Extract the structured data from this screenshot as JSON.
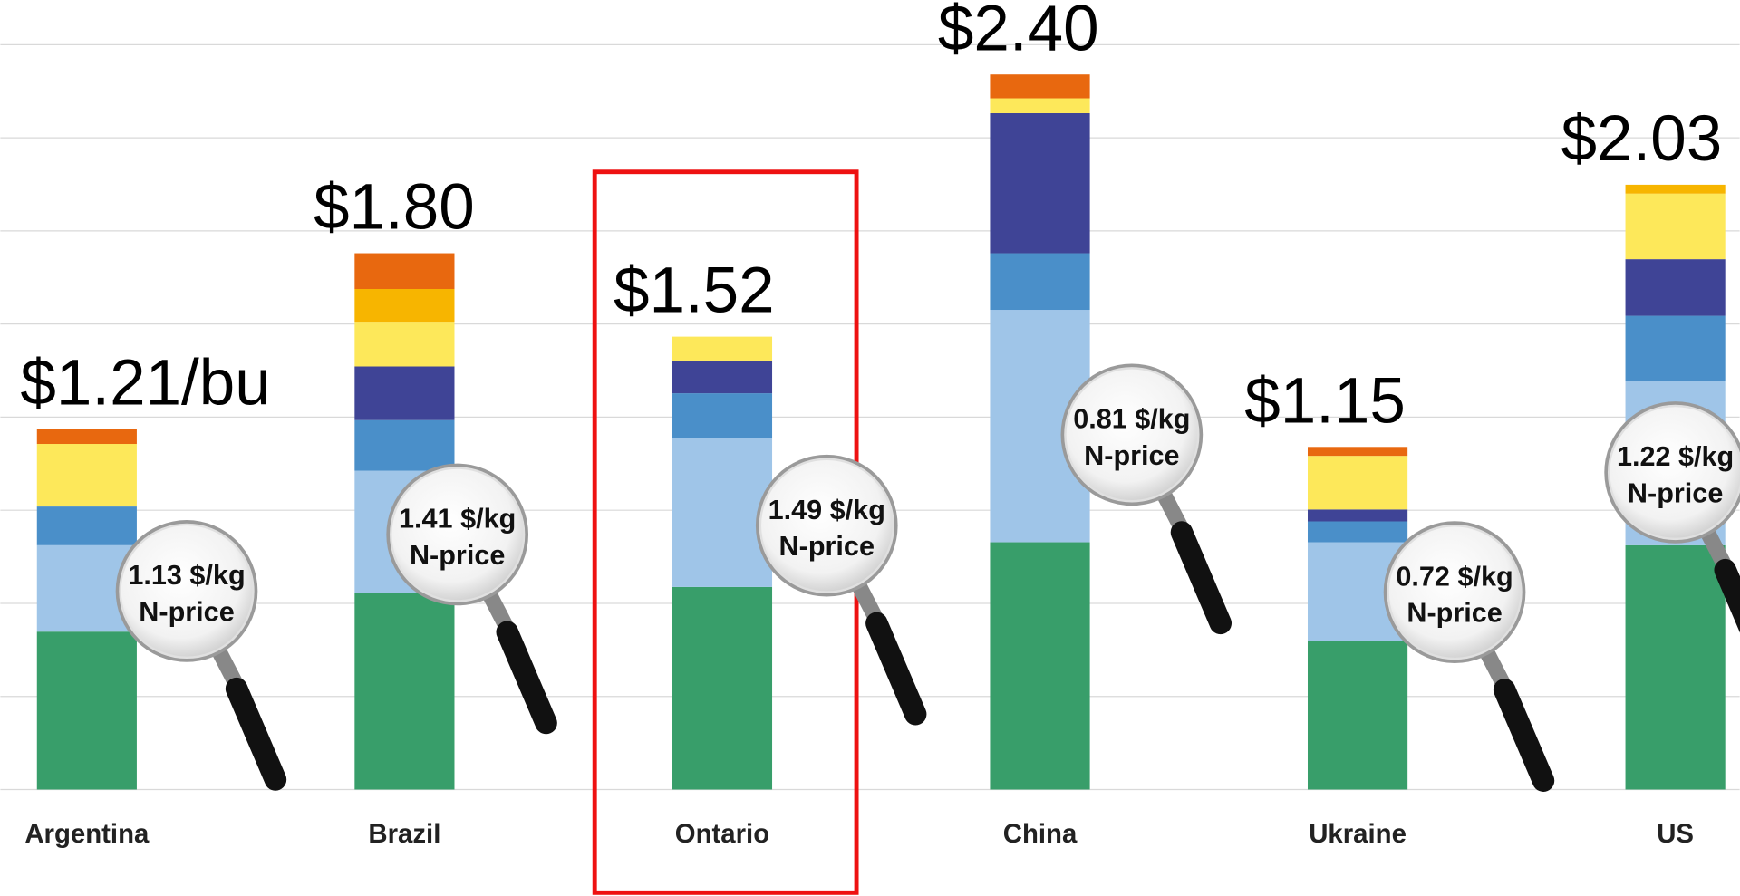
{
  "chart_data": {
    "type": "stacked_bar",
    "categories": [
      "Argentina",
      "Brazil",
      "Ontario",
      "China",
      "Ukraine",
      "US"
    ],
    "series": [
      {
        "color": "#389e6a",
        "values": [
          0.53,
          0.66,
          0.68,
          0.83,
          0.5,
          0.82
        ]
      },
      {
        "color": "#9fc5e8",
        "values": [
          0.29,
          0.41,
          0.5,
          0.78,
          0.33,
          0.55
        ]
      },
      {
        "color": "#4a8fc9",
        "values": [
          0.13,
          0.17,
          0.15,
          0.19,
          0.07,
          0.22
        ]
      },
      {
        "color": "#3f4496",
        "values": [
          0,
          0.18,
          0.11,
          0.47,
          0.04,
          0.19
        ]
      },
      {
        "color": "#fde85a",
        "values": [
          0.21,
          0.15,
          0.08,
          0.05,
          0.18,
          0.22
        ]
      },
      {
        "color": "#f7b500",
        "values": [
          0,
          0.11,
          0,
          0,
          0,
          0.03
        ]
      },
      {
        "color": "#e8680f",
        "values": [
          0.05,
          0.12,
          0,
          0.08,
          0.03,
          0
        ]
      }
    ],
    "totals": {
      "values": [
        1.21,
        1.8,
        1.52,
        2.4,
        1.15,
        2.03
      ],
      "value_labels": [
        "$1.21/bu",
        "$1.80",
        "$1.52",
        "$2.40",
        "$1.15",
        "$2.03"
      ]
    },
    "n_price": {
      "values": [
        1.13,
        1.41,
        1.49,
        0.81,
        0.72,
        1.22
      ],
      "value_labels": [
        "1.13 $/kg",
        "1.41 $/kg",
        "1.49 $/kg",
        "0.81 $/kg",
        "0.72 $/kg",
        "1.22 $/kg"
      ],
      "caption": "N-price"
    },
    "highlight": "Ontario",
    "ylim": [
      0,
      2.65
    ],
    "yticks": [
      0,
      0.3125,
      0.625,
      0.9375,
      1.25,
      1.5625,
      1.875,
      2.1875,
      2.5
    ],
    "grid": true
  }
}
